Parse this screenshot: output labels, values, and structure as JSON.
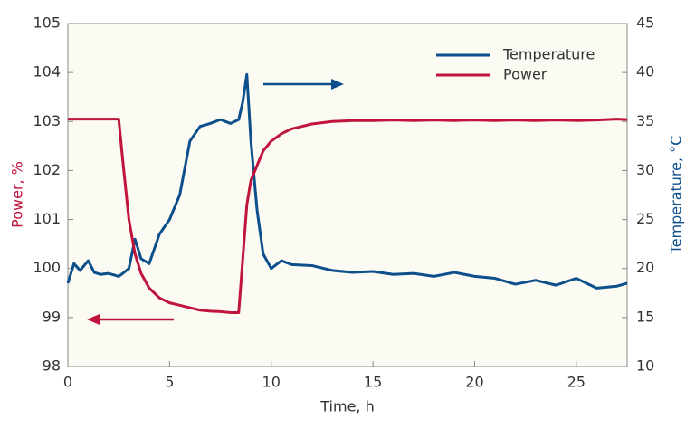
{
  "chart_data": {
    "type": "line",
    "xlabel": "Time, h",
    "ylabel": "Power, %",
    "y2label": "Temperature, °C",
    "x": [
      0,
      0.3,
      0.6,
      1,
      1.3,
      1.6,
      2,
      2.5,
      2.7,
      3,
      3.3,
      3.6,
      4,
      4.5,
      5,
      5.5,
      6,
      6.5,
      7,
      7.5,
      8,
      8.4,
      8.6,
      8.8,
      9,
      9.3,
      9.6,
      10,
      10.5,
      11,
      12,
      13,
      14,
      15,
      16,
      17,
      18,
      19,
      20,
      21,
      22,
      23,
      24,
      25,
      26,
      27,
      27.5
    ],
    "series": [
      {
        "name": "Temperature",
        "color": "#0d4f8b",
        "axis": "y2",
        "values": [
          18.5,
          20.5,
          19.8,
          20.8,
          19.6,
          19.4,
          19.5,
          19.2,
          19.5,
          20.0,
          23.0,
          21.0,
          20.5,
          23.5,
          25.0,
          27.5,
          33.0,
          34.5,
          34.8,
          35.2,
          34.8,
          35.2,
          37.0,
          39.8,
          33.0,
          26.0,
          21.5,
          20.0,
          20.8,
          20.4,
          20.3,
          19.8,
          19.6,
          19.7,
          19.4,
          19.5,
          19.2,
          19.6,
          19.2,
          19.0,
          18.4,
          18.8,
          18.3,
          19.0,
          18.0,
          18.2,
          18.5
        ]
      },
      {
        "name": "Power",
        "color": "#c0143c",
        "values": [
          103.05,
          103.05,
          103.05,
          103.05,
          103.05,
          103.05,
          103.05,
          103.05,
          102.2,
          101.0,
          100.3,
          99.9,
          99.6,
          99.4,
          99.3,
          99.25,
          99.2,
          99.15,
          99.13,
          99.12,
          99.1,
          99.1,
          100.2,
          101.3,
          101.8,
          102.1,
          102.4,
          102.6,
          102.75,
          102.85,
          102.95,
          103.0,
          103.02,
          103.02,
          103.03,
          103.02,
          103.03,
          103.02,
          103.03,
          103.02,
          103.03,
          103.02,
          103.03,
          103.02,
          103.03,
          103.05,
          103.04
        ]
      }
    ],
    "xlim": [
      0,
      27.5
    ],
    "xticks": [
      0,
      5,
      10,
      15,
      20,
      25
    ],
    "ylim": [
      98,
      105
    ],
    "yticks": [
      98,
      99,
      100,
      101,
      102,
      103,
      104,
      105
    ],
    "y2lim": [
      10,
      45
    ],
    "y2ticks": [
      10,
      15,
      20,
      25,
      30,
      35,
      40,
      45
    ],
    "legend": "top-right",
    "grid": false
  }
}
